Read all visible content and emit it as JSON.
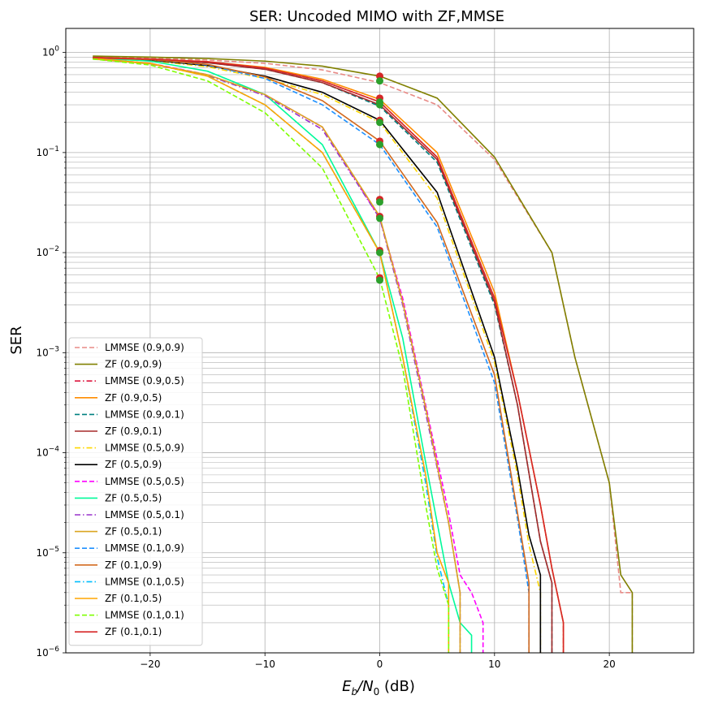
{
  "chart_data": {
    "type": "line",
    "title": "SER: Uncoded MIMO with ZF,MMSE",
    "xlabel": "E_b/N_0 (dB)",
    "ylabel": "SER",
    "xlim": [
      -27.35,
      27.35
    ],
    "ylim": [
      1e-06,
      1.74
    ],
    "yscale": "log",
    "grid": true,
    "grid_minor": true,
    "legend_position": "lower-left",
    "x_ticks": [
      -20,
      -10,
      0,
      10,
      20
    ],
    "x_tick_labels": [
      "−20",
      "−10",
      "0",
      "10",
      "20"
    ],
    "y_tick_labels": [
      {
        "mant": "10",
        "exp": "0"
      },
      {
        "mant": "10",
        "exp": "−1"
      },
      {
        "mant": "10",
        "exp": "−2"
      },
      {
        "mant": "10",
        "exp": "−3"
      },
      {
        "mant": "10",
        "exp": "−4"
      },
      {
        "mant": "10",
        "exp": "−5"
      },
      {
        "mant": "10",
        "exp": "−6"
      }
    ],
    "series": [
      {
        "name": "LMMSE (0.9,0.9)",
        "color": "#e88a86",
        "dash": "dashed",
        "x": [
          -25,
          -20,
          -15,
          -10,
          -5,
          0,
          5,
          10,
          15,
          17,
          20,
          21,
          22
        ],
        "y": [
          0.9,
          0.88,
          0.84,
          0.78,
          0.67,
          0.5,
          0.3,
          0.085,
          0.01,
          0.0009,
          5e-05,
          4e-06,
          4e-06
        ],
        "end": [
          22,
          1e-06
        ]
      },
      {
        "name": "ZF (0.9,0.9)",
        "color": "#808000",
        "dash": "solid",
        "x": [
          -25,
          -20,
          -15,
          -10,
          -5,
          0,
          5,
          10,
          15,
          17,
          20,
          21,
          22
        ],
        "y": [
          0.92,
          0.9,
          0.87,
          0.82,
          0.73,
          0.58,
          0.35,
          0.09,
          0.01,
          0.0009,
          5e-05,
          6e-06,
          4e-06
        ],
        "end": [
          22,
          1e-06
        ]
      },
      {
        "name": "LMMSE (0.9,0.5)",
        "color": "#dc143c",
        "dash": "dashdot",
        "x": [
          -25,
          -20,
          -15,
          -10,
          -5,
          0,
          5,
          10,
          12,
          14,
          15,
          16
        ],
        "y": [
          0.89,
          0.86,
          0.8,
          0.7,
          0.52,
          0.32,
          0.09,
          0.0035,
          0.0004,
          3e-05,
          7e-06,
          2e-06
        ],
        "end": [
          16,
          1e-06
        ]
      },
      {
        "name": "ZF (0.9,0.5)",
        "color": "#ff8c00",
        "dash": "solid",
        "x": [
          -25,
          -20,
          -15,
          -10,
          -5,
          0,
          5,
          10,
          12,
          14,
          15,
          16
        ],
        "y": [
          0.89,
          0.86,
          0.81,
          0.71,
          0.54,
          0.34,
          0.1,
          0.004,
          0.0004,
          3e-05,
          7e-06,
          2e-06
        ],
        "end": [
          16,
          1e-06
        ]
      },
      {
        "name": "LMMSE (0.9,0.1)",
        "color": "#008080",
        "dash": "dashed",
        "x": [
          -25,
          -20,
          -15,
          -10,
          -5,
          0,
          5,
          10,
          12,
          14,
          15
        ],
        "y": [
          0.89,
          0.85,
          0.79,
          0.68,
          0.5,
          0.29,
          0.08,
          0.003,
          0.0003,
          1.3e-05,
          5e-06
        ],
        "end": [
          15,
          1e-06
        ]
      },
      {
        "name": "ZF (0.9,0.1)",
        "color": "#a52a2a",
        "dash": "solid",
        "x": [
          -25,
          -20,
          -15,
          -10,
          -5,
          0,
          5,
          10,
          12,
          14,
          15
        ],
        "y": [
          0.89,
          0.85,
          0.79,
          0.68,
          0.5,
          0.3,
          0.085,
          0.0032,
          0.0003,
          1.3e-05,
          5e-06
        ],
        "end": [
          15,
          1e-06
        ]
      },
      {
        "name": "LMMSE (0.5,0.9)",
        "color": "#ffd700",
        "dash": "dashdot",
        "x": [
          -25,
          -20,
          -15,
          -10,
          -5,
          0,
          5,
          10,
          12,
          13,
          14
        ],
        "y": [
          0.88,
          0.83,
          0.72,
          0.55,
          0.38,
          0.2,
          0.035,
          0.0008,
          6e-05,
          1.2e-05,
          4e-06
        ],
        "end": [
          14,
          1e-06
        ]
      },
      {
        "name": "ZF (0.5,0.9)",
        "color": "#000000",
        "dash": "solid",
        "x": [
          -25,
          -20,
          -15,
          -10,
          -5,
          0,
          5,
          10,
          12,
          13,
          14
        ],
        "y": [
          0.88,
          0.84,
          0.74,
          0.58,
          0.4,
          0.21,
          0.04,
          0.0009,
          7e-05,
          1.5e-05,
          6e-06
        ],
        "end": [
          14,
          1e-06
        ]
      },
      {
        "name": "LMMSE (0.5,0.5)",
        "color": "#ff00ff",
        "dash": "dashed",
        "x": [
          -25,
          -20,
          -15,
          -10,
          -5,
          0,
          2,
          4,
          6,
          7,
          8,
          9
        ],
        "y": [
          0.87,
          0.78,
          0.6,
          0.38,
          0.18,
          0.022,
          0.0035,
          0.0003,
          2.5e-05,
          6e-06,
          4e-06,
          2e-06
        ],
        "end": [
          9,
          1e-06
        ]
      },
      {
        "name": "ZF (0.5,0.5)",
        "color": "#00fa9a",
        "dash": "solid",
        "x": [
          -25,
          -20,
          -15,
          -10,
          -5,
          0,
          2,
          4,
          6,
          7,
          8
        ],
        "y": [
          0.88,
          0.82,
          0.65,
          0.38,
          0.12,
          0.01,
          0.0014,
          8e-05,
          5e-06,
          2e-06,
          1.5e-06
        ],
        "end": [
          8,
          1e-06
        ]
      },
      {
        "name": "LMMSE (0.5,0.1)",
        "color": "#9932cc",
        "dash": "dashdot",
        "x": [
          -25,
          -20,
          -15,
          -10,
          -5,
          0,
          2,
          4,
          6,
          7
        ],
        "y": [
          0.86,
          0.77,
          0.59,
          0.37,
          0.17,
          0.022,
          0.003,
          0.00025,
          2e-05,
          4e-06
        ],
        "end": [
          7,
          1e-06
        ]
      },
      {
        "name": "ZF (0.5,0.1)",
        "color": "#daa520",
        "dash": "solid",
        "x": [
          -25,
          -20,
          -15,
          -10,
          -5,
          0,
          2,
          4,
          6,
          7
        ],
        "y": [
          0.86,
          0.77,
          0.6,
          0.38,
          0.18,
          0.023,
          0.0032,
          0.00028,
          2e-05,
          4e-06
        ],
        "end": [
          7,
          1e-06
        ]
      },
      {
        "name": "LMMSE (0.1,0.9)",
        "color": "#1e90ff",
        "dash": "dashed",
        "x": [
          -25,
          -20,
          -15,
          -10,
          -5,
          0,
          5,
          10,
          12,
          13
        ],
        "y": [
          0.88,
          0.85,
          0.75,
          0.55,
          0.3,
          0.12,
          0.018,
          0.0005,
          2.2e-05,
          4e-06
        ],
        "end": [
          13,
          1e-06
        ]
      },
      {
        "name": "ZF (0.1,0.9)",
        "color": "#d2691e",
        "dash": "solid",
        "x": [
          -25,
          -20,
          -15,
          -10,
          -5,
          0,
          5,
          10,
          12,
          13
        ],
        "y": [
          0.88,
          0.85,
          0.76,
          0.57,
          0.33,
          0.13,
          0.02,
          0.0006,
          2.5e-05,
          5e-06
        ],
        "end": [
          13,
          1e-06
        ]
      },
      {
        "name": "LMMSE (0.1,0.5)",
        "color": "#00bfff",
        "dash": "dashdot",
        "x": [
          -25,
          -20,
          -15,
          -10,
          -5,
          0,
          2,
          4,
          5,
          6
        ],
        "y": [
          0.87,
          0.78,
          0.58,
          0.3,
          0.1,
          0.01,
          0.0009,
          5e-05,
          9e-06,
          3e-06
        ],
        "end": [
          6,
          1e-06
        ]
      },
      {
        "name": "ZF (0.1,0.5)",
        "color": "#ffa500",
        "dash": "solid",
        "x": [
          -25,
          -20,
          -15,
          -10,
          -5,
          0,
          2,
          4,
          5,
          6
        ],
        "y": [
          0.87,
          0.78,
          0.58,
          0.3,
          0.1,
          0.01,
          0.0009,
          6e-05,
          1e-05,
          5e-06
        ],
        "end": [
          6,
          1e-06
        ]
      },
      {
        "name": "LMMSE (0.1,0.1)",
        "color": "#7fff00",
        "dash": "dashed",
        "x": [
          -25,
          -20,
          -15,
          -10,
          -5,
          0,
          2,
          4,
          5,
          6
        ],
        "y": [
          0.86,
          0.75,
          0.52,
          0.25,
          0.07,
          0.0055,
          0.0007,
          3e-05,
          7e-06,
          3e-06
        ],
        "end": [
          6,
          1e-06
        ]
      },
      {
        "name": "ZF (0.1,0.1)",
        "color": "#d62728",
        "dash": "solid",
        "x": [
          -25,
          -20,
          -15,
          -10,
          -5,
          0,
          5,
          10,
          12,
          14,
          15,
          16
        ],
        "y": [
          0.89,
          0.86,
          0.81,
          0.7,
          0.52,
          0.32,
          0.09,
          0.0035,
          0.0004,
          3e-05,
          7e-06,
          2e-06
        ],
        "end": [
          16,
          1e-06
        ]
      }
    ],
    "markers_at_zero": [
      {
        "y": 0.58,
        "color": "#d62728"
      },
      {
        "y": 0.52,
        "color": "#2ca02c"
      },
      {
        "y": 0.35,
        "color": "#d62728"
      },
      {
        "y": 0.32,
        "color": "#2ca02c"
      },
      {
        "y": 0.3,
        "color": "#2ca02c"
      },
      {
        "y": 0.21,
        "color": "#d62728"
      },
      {
        "y": 0.2,
        "color": "#2ca02c"
      },
      {
        "y": 0.13,
        "color": "#d62728"
      },
      {
        "y": 0.12,
        "color": "#2ca02c"
      },
      {
        "y": 0.034,
        "color": "#d62728"
      },
      {
        "y": 0.032,
        "color": "#2ca02c"
      },
      {
        "y": 0.023,
        "color": "#d62728"
      },
      {
        "y": 0.022,
        "color": "#2ca02c"
      },
      {
        "y": 0.0105,
        "color": "#d62728"
      },
      {
        "y": 0.01,
        "color": "#2ca02c"
      },
      {
        "y": 0.0056,
        "color": "#d62728"
      },
      {
        "y": 0.0053,
        "color": "#2ca02c"
      }
    ]
  }
}
